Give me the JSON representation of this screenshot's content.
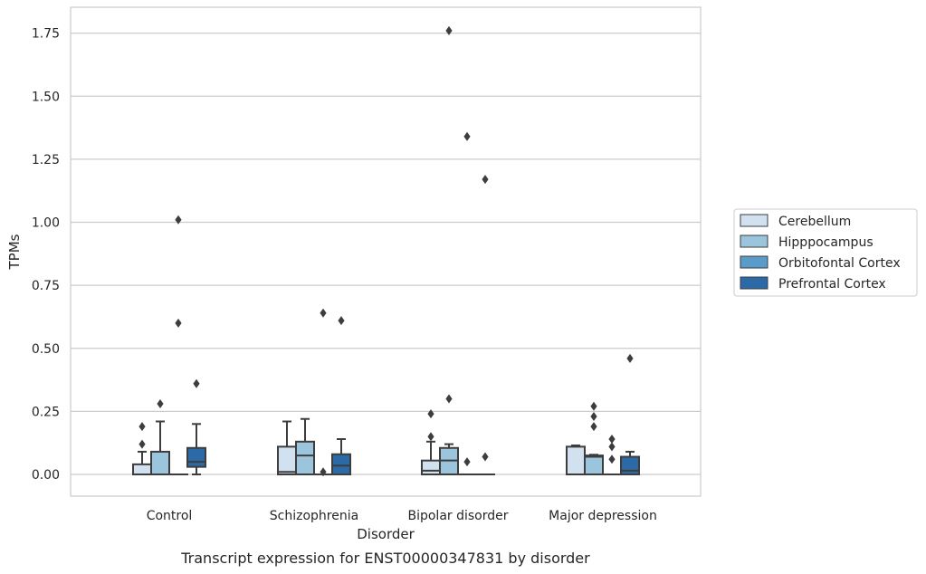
{
  "chart_data": {
    "type": "box",
    "title": "",
    "caption": "Transcript expression for ENST00000347831 by disorder",
    "xlabel": "Disorder",
    "ylabel": "TPMs",
    "ylim": [
      -0.085,
      1.85
    ],
    "yticks": [
      "0.00",
      "0.25",
      "0.50",
      "0.75",
      "1.00",
      "1.25",
      "1.50",
      "1.75"
    ],
    "grid": "horizontal",
    "legend_position": "right",
    "categories": [
      "Control",
      "Schizophrenia",
      "Bipolar disorder",
      "Major depression"
    ],
    "series": [
      {
        "name": "Cerebellum",
        "color": "#d1e1f0",
        "boxes": [
          {
            "category": "Control",
            "whisker_low": 0.0,
            "q1": 0.0,
            "median": 0.0,
            "q3": 0.04,
            "whisker_high": 0.09,
            "outliers": [
              0.12,
              0.19
            ]
          },
          {
            "category": "Schizophrenia",
            "whisker_low": 0.0,
            "q1": 0.0,
            "median": 0.01,
            "q3": 0.11,
            "whisker_high": 0.21,
            "outliers": []
          },
          {
            "category": "Bipolar disorder",
            "whisker_low": 0.0,
            "q1": 0.0,
            "median": 0.015,
            "q3": 0.055,
            "whisker_high": 0.13,
            "outliers": [
              0.15,
              0.24
            ]
          },
          {
            "category": "Major depression",
            "whisker_low": 0.0,
            "q1": 0.0,
            "median": 0.0,
            "q3": 0.11,
            "whisker_high": 0.115,
            "outliers": []
          }
        ]
      },
      {
        "name": "Hipppocampus",
        "color": "#9bc5dd",
        "boxes": [
          {
            "category": "Control",
            "whisker_low": 0.0,
            "q1": 0.0,
            "median": 0.0,
            "q3": 0.09,
            "whisker_high": 0.21,
            "outliers": [
              0.28
            ]
          },
          {
            "category": "Schizophrenia",
            "whisker_low": 0.0,
            "q1": 0.0,
            "median": 0.075,
            "q3": 0.13,
            "whisker_high": 0.22,
            "outliers": []
          },
          {
            "category": "Bipolar disorder",
            "whisker_low": 0.0,
            "q1": 0.0,
            "median": 0.055,
            "q3": 0.105,
            "whisker_high": 0.12,
            "outliers": [
              0.3,
              1.76
            ]
          },
          {
            "category": "Major depression",
            "whisker_low": 0.0,
            "q1": 0.0,
            "median": 0.07,
            "q3": 0.075,
            "whisker_high": 0.078,
            "outliers": [
              0.19,
              0.23,
              0.27
            ]
          }
        ]
      },
      {
        "name": "Orbitofontal Cortex",
        "color": "#5b9bc9",
        "boxes": [
          {
            "category": "Control",
            "whisker_low": 0.0,
            "q1": 0.0,
            "median": 0.0,
            "q3": 0.0,
            "whisker_high": 0.0,
            "outliers": [
              0.6,
              1.01
            ]
          },
          {
            "category": "Schizophrenia",
            "whisker_low": 0.0,
            "q1": 0.0,
            "median": 0.0,
            "q3": 0.0,
            "whisker_high": 0.0,
            "outliers": [
              0.01,
              0.64
            ]
          },
          {
            "category": "Bipolar disorder",
            "whisker_low": 0.0,
            "q1": 0.0,
            "median": 0.0,
            "q3": 0.0,
            "whisker_high": 0.0,
            "outliers": [
              0.05,
              1.34
            ]
          },
          {
            "category": "Major depression",
            "whisker_low": 0.0,
            "q1": 0.0,
            "median": 0.0,
            "q3": 0.0,
            "whisker_high": 0.0,
            "outliers": [
              0.06,
              0.11,
              0.14
            ]
          }
        ]
      },
      {
        "name": "Prefrontal Cortex",
        "color": "#2b6aa6",
        "boxes": [
          {
            "category": "Control",
            "whisker_low": 0.0,
            "q1": 0.03,
            "median": 0.05,
            "q3": 0.105,
            "whisker_high": 0.2,
            "outliers": [
              0.36
            ]
          },
          {
            "category": "Schizophrenia",
            "whisker_low": 0.0,
            "q1": 0.0,
            "median": 0.035,
            "q3": 0.08,
            "whisker_high": 0.14,
            "outliers": [
              0.61
            ]
          },
          {
            "category": "Bipolar disorder",
            "whisker_low": 0.0,
            "q1": 0.0,
            "median": 0.0,
            "q3": 0.0,
            "whisker_high": 0.0,
            "outliers": [
              0.07,
              1.17
            ]
          },
          {
            "category": "Major depression",
            "whisker_low": 0.0,
            "q1": 0.0,
            "median": 0.015,
            "q3": 0.07,
            "whisker_high": 0.09,
            "outliers": [
              0.46
            ]
          }
        ]
      }
    ]
  }
}
